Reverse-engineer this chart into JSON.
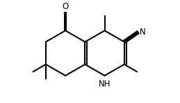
{
  "bg_color": "#ffffff",
  "line_color": "#000000",
  "bond_lw": 1.5,
  "font_size": 8.5,
  "xlim": [
    0,
    10
  ],
  "ylim": [
    0,
    6
  ]
}
